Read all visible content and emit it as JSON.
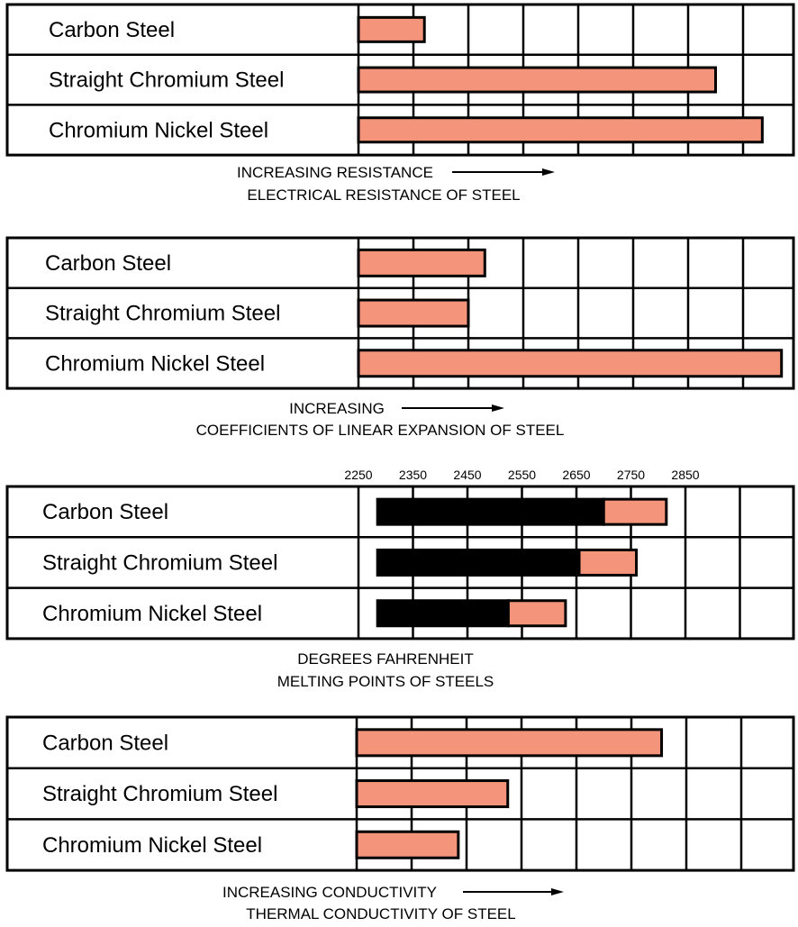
{
  "colors": {
    "bar": "#f4957b",
    "range": "#000000",
    "grid": "#000000"
  },
  "chart_data": [
    {
      "type": "bar",
      "categories": [
        "Carbon Steel",
        "Straight Chromium Steel",
        "Chromium Nickel Steel"
      ],
      "values": [
        1.2,
        6.5,
        7.35
      ],
      "xlim": [
        0,
        8
      ],
      "grid": true,
      "caption": [
        "INCREASING RESISTANCE",
        "ELECTRICAL RESISTANCE OF STEEL"
      ],
      "arrow": true
    },
    {
      "type": "bar",
      "categories": [
        "Carbon Steel",
        "Straight Chromium Steel",
        "Chromium Nickel Steel"
      ],
      "values": [
        2.3,
        2.0,
        7.7
      ],
      "xlim": [
        0,
        8
      ],
      "grid": true,
      "caption": [
        "INCREASING",
        "COEFFICIENTS OF LINEAR EXPANSION OF STEEL"
      ],
      "arrow": true
    },
    {
      "type": "range-bar",
      "categories": [
        "Carbon Steel",
        "Straight Chromium Steel",
        "Chromium Nickel Steel"
      ],
      "series": [
        {
          "values": [
            [
              2285,
              2700
            ],
            [
              2285,
              2655
            ],
            [
              2285,
              2525
            ]
          ]
        },
        {
          "values": [
            [
              2700,
              2815
            ],
            [
              2655,
              2760
            ],
            [
              2525,
              2630
            ]
          ]
        }
      ],
      "ticks": [
        2250,
        2350,
        2450,
        2550,
        2650,
        2750,
        2850
      ],
      "xlim": [
        2250,
        3050
      ],
      "grid": true,
      "caption": [
        "DEGREES FAHRENHEIT",
        "MELTING POINTS OF STEELS"
      ],
      "arrow": false
    },
    {
      "type": "bar",
      "categories": [
        "Carbon Steel",
        "Straight Chromium Steel",
        "Chromium Nickel Steel"
      ],
      "values": [
        5.55,
        2.75,
        1.85
      ],
      "xlim": [
        0,
        8
      ],
      "grid": true,
      "caption": [
        "INCREASING CONDUCTIVITY",
        "THERMAL CONDUCTIVITY OF STEEL"
      ],
      "arrow": true
    }
  ]
}
